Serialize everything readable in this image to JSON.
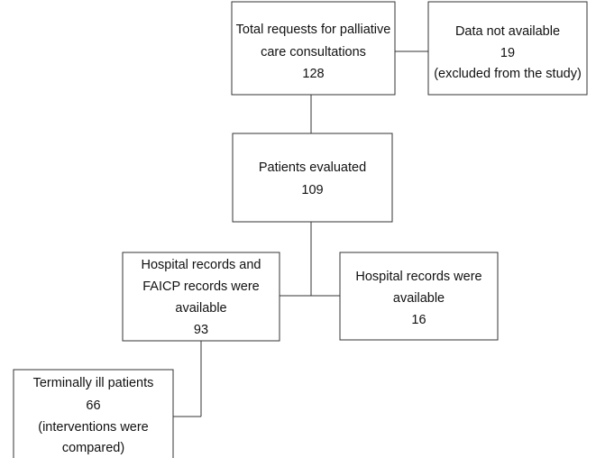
{
  "nodes": [
    {
      "lines": [
        "Total requests for palliative",
        "care consultations",
        "128"
      ]
    },
    {
      "lines": [
        "Data not available",
        "19",
        "(excluded from the study)"
      ]
    },
    {
      "lines": [
        "Patients evaluated",
        "109"
      ]
    },
    {
      "lines": [
        "Hospital records and",
        "FAICP records were",
        "available",
        "93"
      ]
    },
    {
      "lines": [
        "Hospital records were",
        "available",
        "16"
      ]
    },
    {
      "lines": [
        "Terminally ill patients",
        "66",
        "(interventions were",
        "compared)"
      ]
    }
  ]
}
